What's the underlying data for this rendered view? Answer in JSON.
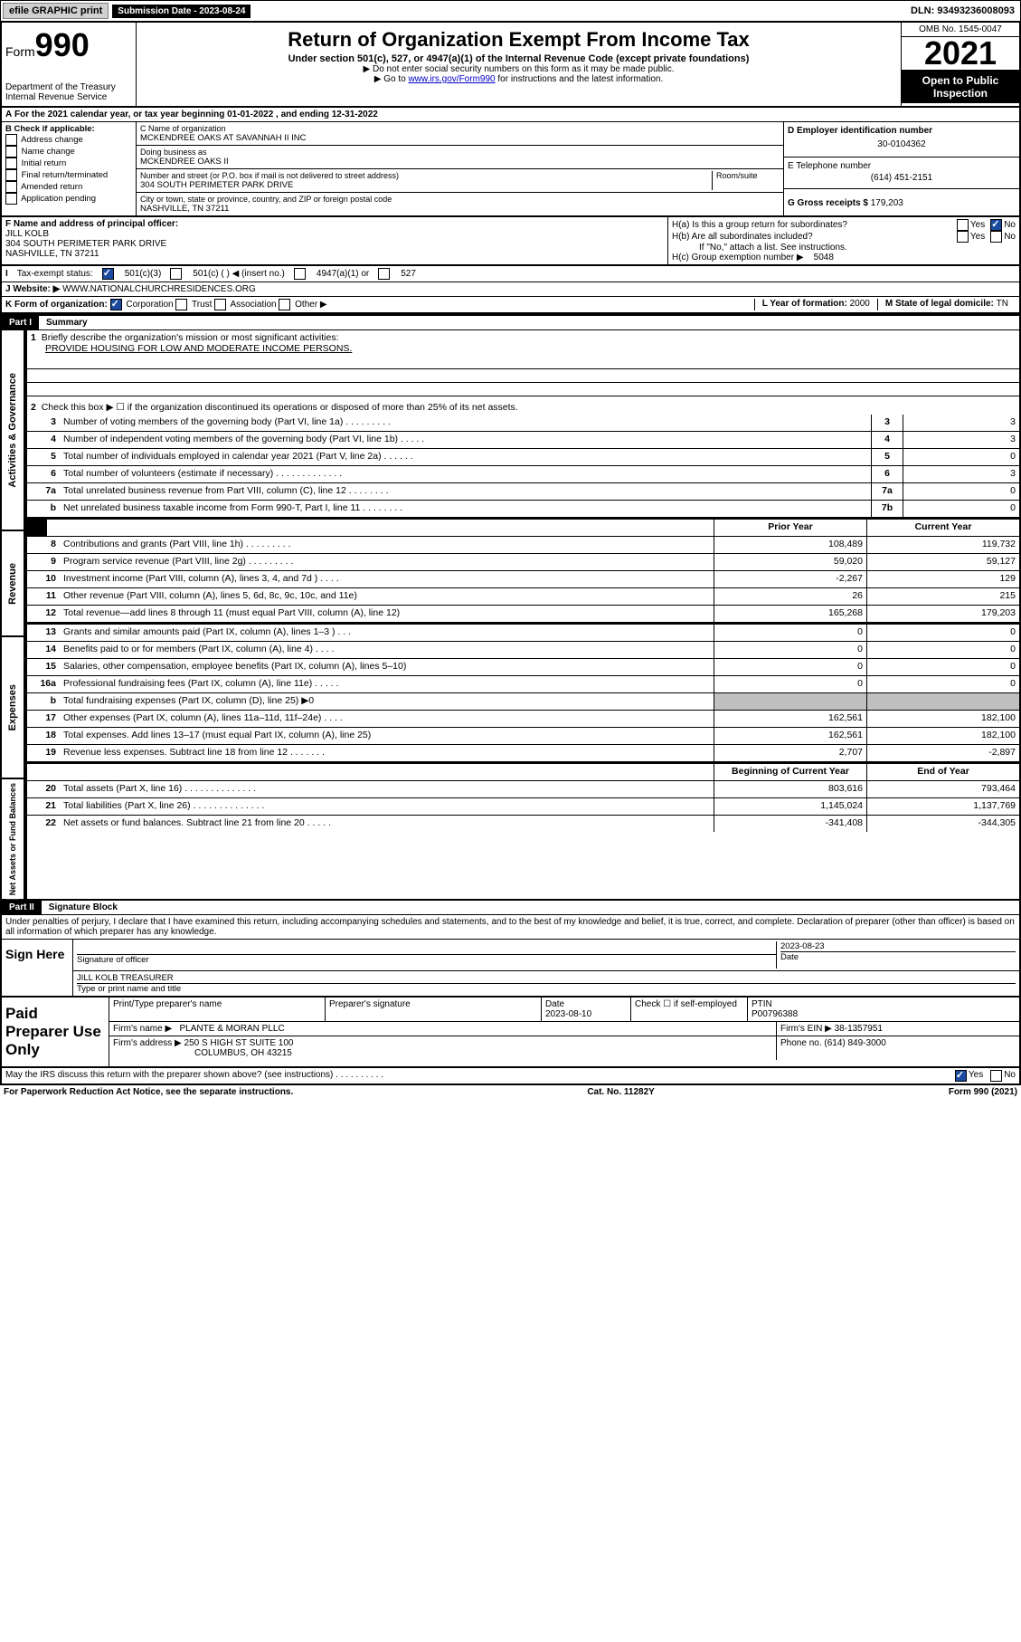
{
  "topbar": {
    "efile": "efile GRAPHIC print",
    "sub_label": "Submission Date - 2023-08-24",
    "dln": "DLN: 93493236008093"
  },
  "header": {
    "form_label": "Form",
    "form_num": "990",
    "dept": "Department of the Treasury",
    "irs": "Internal Revenue Service",
    "title": "Return of Organization Exempt From Income Tax",
    "section": "Under section 501(c), 527, or 4947(a)(1) of the Internal Revenue Code (except private foundations)",
    "note1": "▶ Do not enter social security numbers on this form as it may be made public.",
    "note2_pre": "▶ Go to ",
    "note2_link": "www.irs.gov/Form990",
    "note2_post": " for instructions and the latest information.",
    "omb": "OMB No. 1545-0047",
    "year": "2021",
    "open1": "Open to Public",
    "open2": "Inspection"
  },
  "lineA": "For the 2021 calendar year, or tax year beginning 01-01-2022    , and ending 12-31-2022",
  "boxB": {
    "label": "B Check if applicable:",
    "addr": "Address change",
    "name": "Name change",
    "init": "Initial return",
    "final": "Final return/terminated",
    "amend": "Amended return",
    "app": "Application pending"
  },
  "boxC": {
    "label": "C Name of organization",
    "org": "MCKENDREE OAKS AT SAVANNAH II INC",
    "dba_label": "Doing business as",
    "dba": "MCKENDREE OAKS II",
    "addr_label": "Number and street (or P.O. box if mail is not delivered to street address)",
    "room_label": "Room/suite",
    "addr": "304 SOUTH PERIMETER PARK DRIVE",
    "city_label": "City or town, state or province, country, and ZIP or foreign postal code",
    "city": "NASHVILLE, TN  37211"
  },
  "boxD": {
    "label": "D Employer identification number",
    "ein": "30-0104362"
  },
  "boxE": {
    "label": "E Telephone number",
    "phone": "(614) 451-2151"
  },
  "boxG": {
    "label": "G Gross receipts $ ",
    "val": "179,203"
  },
  "boxF": {
    "label": "F Name and address of principal officer:",
    "name": "JILL KOLB",
    "addr1": "304 SOUTH PERIMETER PARK DRIVE",
    "addr2": "NASHVILLE, TN  37211"
  },
  "boxH": {
    "ha": "H(a)  Is this a group return for subordinates?",
    "hb": "H(b)  Are all subordinates included?",
    "hb_note": "If \"No,\" attach a list. See instructions.",
    "hc": "H(c)  Group exemption number ▶",
    "hc_val": "5048",
    "yes": "Yes",
    "no": "No"
  },
  "lineI": {
    "label": "Tax-exempt status:",
    "c3": "501(c)(3)",
    "c": "501(c) (  ) ◀ (insert no.)",
    "a1": "4947(a)(1) or",
    "s527": "527"
  },
  "lineJ": {
    "label": "Website: ▶",
    "val": "WWW.NATIONALCHURCHRESIDENCES.ORG"
  },
  "lineK": {
    "label": "K Form of organization:",
    "corp": "Corporation",
    "trust": "Trust",
    "assoc": "Association",
    "other": "Other ▶"
  },
  "lineL": {
    "label": "L Year of formation: ",
    "val": "2000"
  },
  "lineM": {
    "label": "M State of legal domicile: ",
    "val": "TN"
  },
  "partI": {
    "num": "Part I",
    "title": "Summary",
    "l1": "Briefly describe the organization's mission or most significant activities:",
    "mission": "PROVIDE HOUSING FOR LOW AND MODERATE INCOME PERSONS.",
    "l2": "Check this box ▶ ☐  if the organization discontinued its operations or disposed of more than 25% of its net assets.",
    "side_ag": "Activities & Governance",
    "side_rev": "Revenue",
    "side_exp": "Expenses",
    "side_net": "Net Assets or Fund Balances",
    "rows_agov": [
      {
        "n": "3",
        "t": "Number of voting members of the governing body (Part VI, line 1a)  .    .    .    .    .    .    .    .    .",
        "b": "3",
        "v": "3"
      },
      {
        "n": "4",
        "t": "Number of independent voting members of the governing body (Part VI, line 1b)   .    .    .    .    .",
        "b": "4",
        "v": "3"
      },
      {
        "n": "5",
        "t": "Total number of individuals employed in calendar year 2021 (Part V, line 2a)  .    .    .    .    .    .",
        "b": "5",
        "v": "0"
      },
      {
        "n": "6",
        "t": "Total number of volunteers (estimate if necessary)   .    .    .    .    .    .    .    .    .    .    .    .    .",
        "b": "6",
        "v": "3"
      },
      {
        "n": "7a",
        "t": "Total unrelated business revenue from Part VIII, column (C), line 12  .    .    .    .    .    .    .    .",
        "b": "7a",
        "v": "0"
      },
      {
        "n": "b",
        "t": "Net unrelated business taxable income from Form 990-T, Part I, line 11 .    .    .    .    .    .    .    .",
        "b": "7b",
        "v": "0"
      }
    ],
    "hdr_prior": "Prior Year",
    "hdr_curr": "Current Year",
    "rows_rev": [
      {
        "n": "8",
        "t": "Contributions and grants (Part VIII, line 1h)   .    .    .    .    .    .    .    .    .",
        "p": "108,489",
        "c": "119,732"
      },
      {
        "n": "9",
        "t": "Program service revenue (Part VIII, line 2g)  .    .    .    .    .    .    .    .    .",
        "p": "59,020",
        "c": "59,127"
      },
      {
        "n": "10",
        "t": "Investment income (Part VIII, column (A), lines 3, 4, and 7d )   .    .    .    .",
        "p": "-2,267",
        "c": "129"
      },
      {
        "n": "11",
        "t": "Other revenue (Part VIII, column (A), lines 5, 6d, 8c, 9c, 10c, and 11e)",
        "p": "26",
        "c": "215"
      },
      {
        "n": "12",
        "t": "Total revenue—add lines 8 through 11 (must equal Part VIII, column (A), line 12)",
        "p": "165,268",
        "c": "179,203"
      }
    ],
    "rows_exp": [
      {
        "n": "13",
        "t": "Grants and similar amounts paid (Part IX, column (A), lines 1–3 )   .    .    .",
        "p": "0",
        "c": "0"
      },
      {
        "n": "14",
        "t": "Benefits paid to or for members (Part IX, column (A), line 4)  .    .    .    .",
        "p": "0",
        "c": "0"
      },
      {
        "n": "15",
        "t": "Salaries, other compensation, employee benefits (Part IX, column (A), lines 5–10)",
        "p": "0",
        "c": "0"
      },
      {
        "n": "16a",
        "t": "Professional fundraising fees (Part IX, column (A), line 11e)  .    .    .    .    .",
        "p": "0",
        "c": "0"
      },
      {
        "n": "b",
        "t": "Total fundraising expenses (Part IX, column (D), line 25) ▶0",
        "p": "",
        "c": ""
      },
      {
        "n": "17",
        "t": "Other expenses (Part IX, column (A), lines 11a–11d, 11f–24e)   .    .    .    .",
        "p": "162,561",
        "c": "182,100"
      },
      {
        "n": "18",
        "t": "Total expenses. Add lines 13–17 (must equal Part IX, column (A), line 25)",
        "p": "162,561",
        "c": "182,100"
      },
      {
        "n": "19",
        "t": "Revenue less expenses. Subtract line 18 from line 12  .    .    .    .    .    .    .",
        "p": "2,707",
        "c": "-2,897"
      }
    ],
    "hdr_beg": "Beginning of Current Year",
    "hdr_end": "End of Year",
    "rows_net": [
      {
        "n": "20",
        "t": "Total assets (Part X, line 16)  .    .    .    .    .    .    .    .    .    .    .    .    .    .",
        "p": "803,616",
        "c": "793,464"
      },
      {
        "n": "21",
        "t": "Total liabilities (Part X, line 26)  .    .    .    .    .    .    .    .    .    .    .    .    .    .",
        "p": "1,145,024",
        "c": "1,137,769"
      },
      {
        "n": "22",
        "t": "Net assets or fund balances. Subtract line 21 from line 20   .    .    .    .    .",
        "p": "-341,408",
        "c": "-344,305"
      }
    ]
  },
  "partII": {
    "num": "Part II",
    "title": "Signature Block",
    "penalties": "Under penalties of perjury, I declare that I have examined this return, including accompanying schedules and statements, and to the best of my knowledge and belief, it is true, correct, and complete. Declaration of preparer (other than officer) is based on all information of which preparer has any knowledge."
  },
  "sign": {
    "here": "Sign Here",
    "sig_label": "Signature of officer",
    "date_label": "Date",
    "date": "2023-08-23",
    "name": "JILL KOLB  TREASURER",
    "name_label": "Type or print name and title"
  },
  "prep": {
    "label": "Paid Preparer Use Only",
    "pt_label": "Print/Type preparer's name",
    "ps_label": "Preparer's signature",
    "d_label": "Date",
    "d": "2023-08-10",
    "check_label": "Check ☐ if self-employed",
    "ptin_label": "PTIN",
    "ptin": "P00796388",
    "firm_label": "Firm's name     ▶",
    "firm": "PLANTE & MORAN PLLC",
    "ein_label": "Firm's EIN ▶",
    "ein": "38-1357951",
    "addr_label": "Firm's address ▶",
    "addr1": "250 S HIGH ST SUITE 100",
    "addr2": "COLUMBUS, OH  43215",
    "ph_label": "Phone no. ",
    "ph": "(614) 849-3000"
  },
  "discuss": {
    "txt": "May the IRS discuss this return with the preparer shown above? (see instructions)    .    .    .    .    .    .    .    .    .    .",
    "yes": "Yes",
    "no": "No"
  },
  "footer": {
    "left": "For Paperwork Reduction Act Notice, see the separate instructions.",
    "mid": "Cat. No. 11282Y",
    "right": "Form 990 (2021)"
  }
}
